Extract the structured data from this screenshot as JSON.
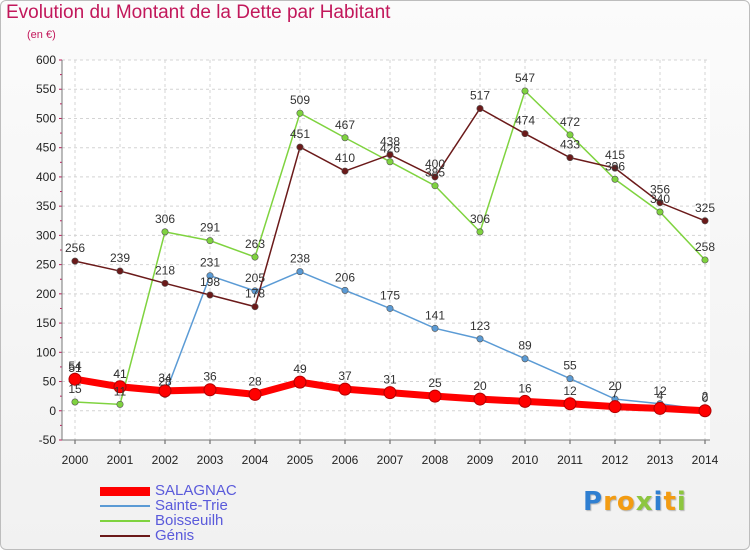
{
  "title": "Evolution du Montant de la Dette par Habitant",
  "unit_label": "(en €)",
  "logo": {
    "letters": [
      "P",
      "r",
      "o",
      "x",
      "i",
      "t",
      "i"
    ],
    "colors": [
      "#2f7fd1",
      "#f39c12",
      "#f39c12",
      "#8dc63f",
      "#2f7fd1",
      "#f39c12",
      "#8dc63f"
    ]
  },
  "chart_data": {
    "type": "line",
    "x": [
      "2000",
      "2001",
      "2002",
      "2003",
      "2004",
      "2005",
      "2006",
      "2007",
      "2008",
      "2009",
      "2010",
      "2011",
      "2012",
      "2013",
      "2014"
    ],
    "ylim": [
      -50,
      600
    ],
    "yticks": [
      -50,
      0,
      50,
      100,
      150,
      200,
      250,
      300,
      350,
      400,
      450,
      500,
      550,
      600
    ],
    "grid": true,
    "legend_position": "bottom-left",
    "series": [
      {
        "name": "SALAGNAC",
        "color": "#ff0000",
        "thick": true,
        "values": [
          54,
          41,
          34,
          36,
          28,
          49,
          37,
          31,
          25,
          20,
          16,
          12,
          7,
          4,
          0
        ],
        "labels": [
          "54",
          "41",
          "34",
          "36",
          "28",
          "49",
          "37",
          "31",
          "25",
          "20",
          "16",
          "12",
          "7",
          "4",
          "0"
        ]
      },
      {
        "name": "Sainte-Trie",
        "color": "#5b9bd5",
        "thick": false,
        "values": [
          51,
          41,
          28,
          231,
          205,
          238,
          206,
          175,
          141,
          123,
          89,
          55,
          20,
          12,
          2
        ],
        "labels": [
          "51",
          "41",
          "28",
          "231",
          "205",
          "238",
          "206",
          "175",
          "141",
          "123",
          "89",
          "55",
          "20",
          "12",
          "2"
        ]
      },
      {
        "name": "Boisseuilh",
        "color": "#7fd33f",
        "thick": false,
        "values": [
          15,
          11,
          306,
          291,
          263,
          509,
          467,
          426,
          385,
          306,
          547,
          472,
          396,
          340,
          258
        ],
        "labels": [
          "15",
          "11",
          "306",
          "291",
          "263",
          "509",
          "467",
          "426",
          "385",
          "306",
          "547",
          "472",
          "396",
          "340",
          "258"
        ]
      },
      {
        "name": "Génis",
        "color": "#6b1a1a",
        "thick": false,
        "values": [
          256,
          239,
          218,
          198,
          178,
          451,
          410,
          438,
          400,
          517,
          474,
          433,
          415,
          356,
          325
        ],
        "labels": [
          "256",
          "239",
          "218",
          "198",
          "178",
          "451",
          "410",
          "438",
          "400",
          "517",
          "474",
          "433",
          "415",
          "356",
          "325"
        ]
      }
    ]
  }
}
